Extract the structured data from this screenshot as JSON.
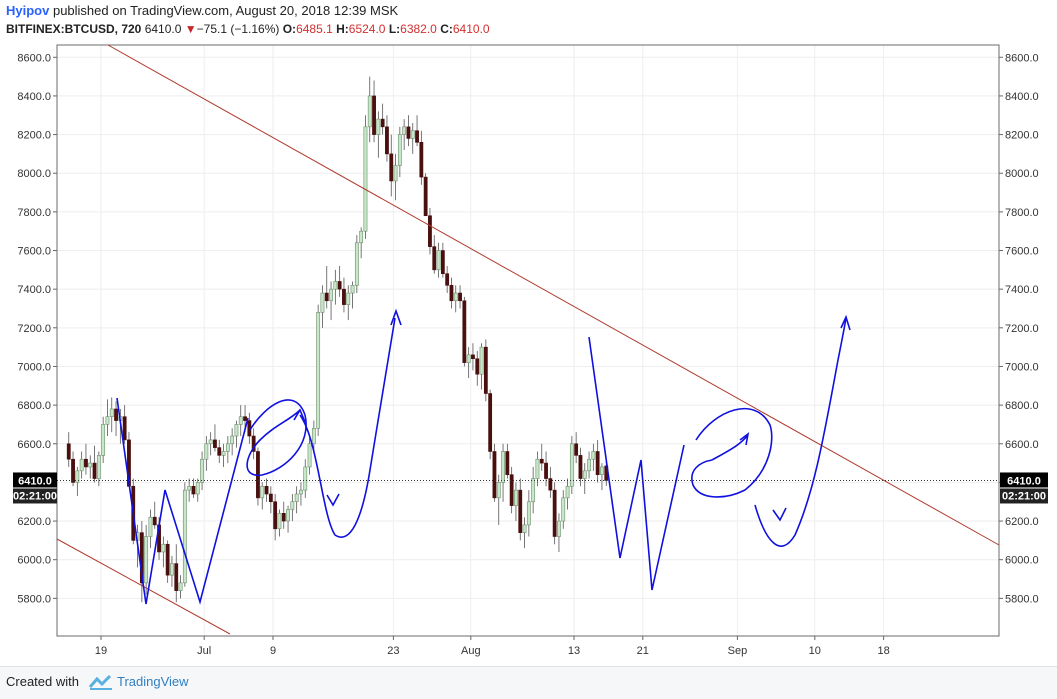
{
  "header": {
    "author": "Hyipov",
    "published": "published on TradingView.com, August 20, 2018 12:39 MSK",
    "symbol": "BITFINEX:BTCUSD, 720",
    "last": "6410.0",
    "change": "−75.1 (−1.16%)",
    "o_label": "O:",
    "o_value": "6485.1",
    "h_label": "H:",
    "h_value": "6524.0",
    "l_label": "L:",
    "l_value": "6382.0",
    "c_label": "C:",
    "c_value": "6410.0"
  },
  "footer": {
    "created_with": "Created with",
    "brand": "TradingView"
  },
  "colors": {
    "bull": "#c8e6c9",
    "bear": "#4a0f0f",
    "trendline": "#b03a2e",
    "drawing": "#1010e0",
    "price_label": "#000000"
  },
  "chart_data": {
    "type": "candlestick",
    "price_label": "6410.0",
    "time_label": "02:21:00",
    "current_price": 6410.0,
    "ylim": [
      5620,
      8650
    ],
    "y_ticks": [
      5800.0,
      6000.0,
      6200.0,
      6400.0,
      6600.0,
      6800.0,
      7000.0,
      7200.0,
      7400.0,
      7600.0,
      7800.0,
      8000.0,
      8200.0,
      8400.0,
      8600.0
    ],
    "x_ticks": [
      {
        "label": "19",
        "day": 0
      },
      {
        "label": "Jul",
        "day": 12
      },
      {
        "label": "9",
        "day": 20
      },
      {
        "label": "23",
        "day": 34
      },
      {
        "label": "Aug",
        "day": 43
      },
      {
        "label": "13",
        "day": 55
      },
      {
        "label": "21",
        "day": 63
      },
      {
        "label": "Sep",
        "day": 74
      },
      {
        "label": "10",
        "day": 83
      },
      {
        "label": "18",
        "day": 91
      }
    ],
    "candles_start_day": -4,
    "candles_per_day": 2,
    "candles": [
      [
        6600,
        6660,
        6480,
        6520
      ],
      [
        6520,
        6560,
        6380,
        6400
      ],
      [
        6400,
        6480,
        6330,
        6460
      ],
      [
        6460,
        6560,
        6420,
        6520
      ],
      [
        6520,
        6600,
        6440,
        6480
      ],
      [
        6480,
        6540,
        6420,
        6500
      ],
      [
        6500,
        6590,
        6400,
        6420
      ],
      [
        6420,
        6560,
        6380,
        6540
      ],
      [
        6540,
        6740,
        6500,
        6700
      ],
      [
        6700,
        6830,
        6640,
        6740
      ],
      [
        6740,
        6840,
        6660,
        6780
      ],
      [
        6780,
        6820,
        6640,
        6720
      ],
      [
        6720,
        6780,
        6600,
        6740
      ],
      [
        6740,
        6800,
        6600,
        6620
      ],
      [
        6620,
        6660,
        6380,
        6380
      ],
      [
        6380,
        6420,
        6080,
        6100
      ],
      [
        6100,
        6180,
        5960,
        6140
      ],
      [
        6140,
        6200,
        5780,
        5880
      ],
      [
        5880,
        6180,
        5820,
        6120
      ],
      [
        6120,
        6260,
        6060,
        6220
      ],
      [
        6220,
        6300,
        6160,
        6180
      ],
      [
        6180,
        6220,
        6000,
        6040
      ],
      [
        6040,
        6120,
        5960,
        6080
      ],
      [
        6080,
        6100,
        5880,
        5920
      ],
      [
        5920,
        6020,
        5860,
        5980
      ],
      [
        5980,
        6080,
        5780,
        5840
      ],
      [
        5840,
        5920,
        5800,
        5880
      ],
      [
        5880,
        6400,
        5860,
        6360
      ],
      [
        6360,
        6420,
        6300,
        6380
      ],
      [
        6380,
        6420,
        6320,
        6340
      ],
      [
        6340,
        6420,
        6300,
        6400
      ],
      [
        6400,
        6560,
        6360,
        6520
      ],
      [
        6520,
        6640,
        6460,
        6600
      ],
      [
        6600,
        6660,
        6540,
        6620
      ],
      [
        6620,
        6700,
        6560,
        6580
      ],
      [
        6580,
        6620,
        6500,
        6540
      ],
      [
        6540,
        6600,
        6480,
        6560
      ],
      [
        6560,
        6640,
        6500,
        6600
      ],
      [
        6600,
        6680,
        6540,
        6640
      ],
      [
        6640,
        6720,
        6580,
        6700
      ],
      [
        6700,
        6800,
        6640,
        6740
      ],
      [
        6740,
        6800,
        6660,
        6720
      ],
      [
        6720,
        6760,
        6600,
        6640
      ],
      [
        6640,
        6680,
        6520,
        6560
      ],
      [
        6560,
        6580,
        6280,
        6320
      ],
      [
        6320,
        6400,
        6260,
        6380
      ],
      [
        6380,
        6420,
        6300,
        6340
      ],
      [
        6340,
        6380,
        6240,
        6300
      ],
      [
        6300,
        6340,
        6100,
        6160
      ],
      [
        6160,
        6260,
        6120,
        6240
      ],
      [
        6240,
        6300,
        6160,
        6200
      ],
      [
        6200,
        6280,
        6140,
        6260
      ],
      [
        6260,
        6340,
        6200,
        6300
      ],
      [
        6300,
        6380,
        6240,
        6340
      ],
      [
        6340,
        6400,
        6280,
        6360
      ],
      [
        6360,
        6520,
        6320,
        6480
      ],
      [
        6480,
        6640,
        6440,
        6600
      ],
      [
        6600,
        6720,
        6560,
        6680
      ],
      [
        6680,
        7320,
        6640,
        7280
      ],
      [
        7280,
        7420,
        7200,
        7380
      ],
      [
        7380,
        7520,
        7300,
        7340
      ],
      [
        7340,
        7440,
        7240,
        7400
      ],
      [
        7400,
        7500,
        7320,
        7440
      ],
      [
        7440,
        7520,
        7360,
        7400
      ],
      [
        7400,
        7460,
        7280,
        7320
      ],
      [
        7320,
        7420,
        7240,
        7380
      ],
      [
        7380,
        7440,
        7300,
        7420
      ],
      [
        7420,
        7680,
        7380,
        7640
      ],
      [
        7640,
        7720,
        7560,
        7700
      ],
      [
        7700,
        8300,
        7660,
        8240
      ],
      [
        8240,
        8500,
        8160,
        8400
      ],
      [
        8400,
        8480,
        8160,
        8200
      ],
      [
        8200,
        8320,
        8080,
        8280
      ],
      [
        8280,
        8360,
        8200,
        8240
      ],
      [
        8240,
        8300,
        8060,
        8100
      ],
      [
        8100,
        8200,
        7880,
        7960
      ],
      [
        7960,
        8100,
        7860,
        8040
      ],
      [
        8040,
        8240,
        7980,
        8200
      ],
      [
        8200,
        8280,
        8120,
        8240
      ],
      [
        8240,
        8300,
        8140,
        8180
      ],
      [
        8180,
        8260,
        8100,
        8220
      ],
      [
        8220,
        8300,
        8140,
        8160
      ],
      [
        8160,
        8220,
        7940,
        7980
      ],
      [
        7980,
        8000,
        7780,
        7780
      ],
      [
        7780,
        7820,
        7580,
        7620
      ],
      [
        7620,
        7680,
        7480,
        7500
      ],
      [
        7500,
        7640,
        7460,
        7600
      ],
      [
        7600,
        7640,
        7460,
        7480
      ],
      [
        7480,
        7520,
        7380,
        7420
      ],
      [
        7420,
        7460,
        7300,
        7340
      ],
      [
        7340,
        7420,
        7280,
        7380
      ],
      [
        7380,
        7420,
        7300,
        7340
      ],
      [
        7340,
        7360,
        7000,
        7020
      ],
      [
        7020,
        7100,
        6940,
        7060
      ],
      [
        7060,
        7120,
        6980,
        7040
      ],
      [
        7040,
        7080,
        6900,
        6960
      ],
      [
        6960,
        7120,
        6880,
        7100
      ],
      [
        7100,
        7140,
        6820,
        6860
      ],
      [
        6860,
        6880,
        6520,
        6560
      ],
      [
        6560,
        6600,
        6300,
        6320
      ],
      [
        6320,
        6440,
        6180,
        6400
      ],
      [
        6400,
        6600,
        6300,
        6560
      ],
      [
        6560,
        6600,
        6420,
        6440
      ],
      [
        6440,
        6480,
        6240,
        6280
      ],
      [
        6280,
        6400,
        6200,
        6360
      ],
      [
        6360,
        6420,
        6100,
        6140
      ],
      [
        6140,
        6220,
        6060,
        6180
      ],
      [
        6180,
        6360,
        6120,
        6300
      ],
      [
        6300,
        6480,
        6240,
        6420
      ],
      [
        6420,
        6560,
        6380,
        6520
      ],
      [
        6520,
        6600,
        6460,
        6500
      ],
      [
        6500,
        6560,
        6380,
        6420
      ],
      [
        6420,
        6480,
        6320,
        6360
      ],
      [
        6360,
        6400,
        6080,
        6120
      ],
      [
        6120,
        6240,
        6040,
        6200
      ],
      [
        6200,
        6360,
        6160,
        6320
      ],
      [
        6320,
        6420,
        6260,
        6380
      ],
      [
        6380,
        6640,
        6340,
        6600
      ],
      [
        6600,
        6660,
        6500,
        6540
      ],
      [
        6540,
        6580,
        6380,
        6420
      ],
      [
        6420,
        6500,
        6340,
        6460
      ],
      [
        6460,
        6560,
        6420,
        6520
      ],
      [
        6520,
        6600,
        6460,
        6560
      ],
      [
        6560,
        6620,
        6400,
        6440
      ],
      [
        6440,
        6500,
        6360,
        6480
      ],
      [
        6485.1,
        6524.0,
        6382.0,
        6410.0
      ]
    ]
  }
}
